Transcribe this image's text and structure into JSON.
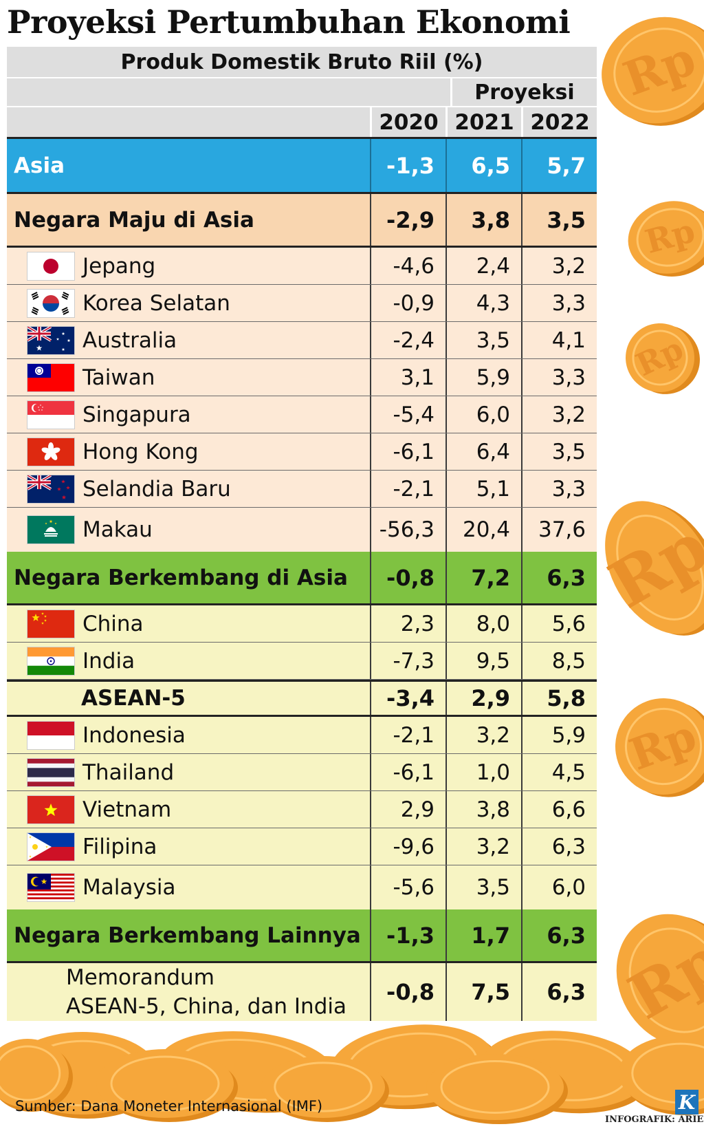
{
  "title": "Proyeksi Pertumbuhan Ekonomi",
  "chart_data": {
    "type": "table",
    "title": "Produk Domestik Bruto Riil (%)",
    "projection_label": "Proyeksi",
    "columns": [
      "2020",
      "2021",
      "2022"
    ],
    "rows": [
      {
        "kind": "category",
        "group": "asia",
        "label": "Asia",
        "values": [
          "-1,3",
          "6,5",
          "5,7"
        ]
      },
      {
        "kind": "category",
        "group": "maju",
        "label": "Negara Maju di Asia",
        "values": [
          "-2,9",
          "3,8",
          "3,5"
        ]
      },
      {
        "kind": "country",
        "group": "maju",
        "flag": "japan-flag-icon",
        "label": "Jepang",
        "values": [
          "-4,6",
          "2,4",
          "3,2"
        ]
      },
      {
        "kind": "country",
        "group": "maju",
        "flag": "south-korea-flag-icon",
        "label": "Korea Selatan",
        "values": [
          "-0,9",
          "4,3",
          "3,3"
        ]
      },
      {
        "kind": "country",
        "group": "maju",
        "flag": "australia-flag-icon",
        "label": "Australia",
        "values": [
          "-2,4",
          "3,5",
          "4,1"
        ]
      },
      {
        "kind": "country",
        "group": "maju",
        "flag": "taiwan-flag-icon",
        "label": "Taiwan",
        "values": [
          "3,1",
          "5,9",
          "3,3"
        ]
      },
      {
        "kind": "country",
        "group": "maju",
        "flag": "singapore-flag-icon",
        "label": "Singapura",
        "values": [
          "-5,4",
          "6,0",
          "3,2"
        ]
      },
      {
        "kind": "country",
        "group": "maju",
        "flag": "hong-kong-flag-icon",
        "label": "Hong Kong",
        "values": [
          "-6,1",
          "6,4",
          "3,5"
        ]
      },
      {
        "kind": "country",
        "group": "maju",
        "flag": "new-zealand-flag-icon",
        "label": "Selandia Baru",
        "values": [
          "-2,1",
          "5,1",
          "3,3"
        ]
      },
      {
        "kind": "country",
        "group": "maju",
        "flag": "macau-flag-icon",
        "label": "Makau",
        "values": [
          "-56,3",
          "20,4",
          "37,6"
        ],
        "last": true
      },
      {
        "kind": "category",
        "group": "berk",
        "label": "Negara Berkembang di Asia",
        "values": [
          "-0,8",
          "7,2",
          "6,3"
        ]
      },
      {
        "kind": "country",
        "group": "berk",
        "flag": "china-flag-icon",
        "label": "China",
        "values": [
          "2,3",
          "8,0",
          "5,6"
        ]
      },
      {
        "kind": "country",
        "group": "berk",
        "flag": "india-flag-icon",
        "label": "India",
        "values": [
          "-7,3",
          "9,5",
          "8,5"
        ]
      },
      {
        "kind": "subtotal",
        "group": "berk",
        "label": "ASEAN-5",
        "values": [
          "-3,4",
          "2,9",
          "5,8"
        ]
      },
      {
        "kind": "country",
        "group": "berk",
        "flag": "indonesia-flag-icon",
        "label": "Indonesia",
        "values": [
          "-2,1",
          "3,2",
          "5,9"
        ]
      },
      {
        "kind": "country",
        "group": "berk",
        "flag": "thailand-flag-icon",
        "label": "Thailand",
        "values": [
          "-6,1",
          "1,0",
          "4,5"
        ]
      },
      {
        "kind": "country",
        "group": "berk",
        "flag": "vietnam-flag-icon",
        "label": "Vietnam",
        "values": [
          "2,9",
          "3,8",
          "6,6"
        ]
      },
      {
        "kind": "country",
        "group": "berk",
        "flag": "philippines-flag-icon",
        "label": "Filipina",
        "values": [
          "-9,6",
          "3,2",
          "6,3"
        ]
      },
      {
        "kind": "country",
        "group": "berk",
        "flag": "malaysia-flag-icon",
        "label": "Malaysia",
        "values": [
          "-5,6",
          "3,5",
          "6,0"
        ],
        "last": true
      },
      {
        "kind": "category",
        "group": "lain",
        "label": "Negara Berkembang Lainnya",
        "values": [
          "-1,3",
          "1,7",
          "6,3"
        ]
      },
      {
        "kind": "memo",
        "group": "berk",
        "label": "Memorandum",
        "label2": "ASEAN-5, China, dan India",
        "values": [
          "-0,8",
          "7,5",
          "6,3"
        ]
      }
    ]
  },
  "colors": {
    "asia": "#29a7df",
    "maju_header": "#f9d6b0",
    "maju_rows": "#fde9d6",
    "berkembang_header": "#7fc241",
    "berkembang_rows": "#f7f4c3",
    "coin": "#f6a73b"
  },
  "decorations": {
    "coin_icon": "rupiah-coin-icon",
    "coin_text": "Rp"
  },
  "footer": {
    "source": "Sumber: Dana Moneter Internasional (IMF)",
    "credit": "INFOGRAFIK: ARIE",
    "logo_text": "K"
  }
}
